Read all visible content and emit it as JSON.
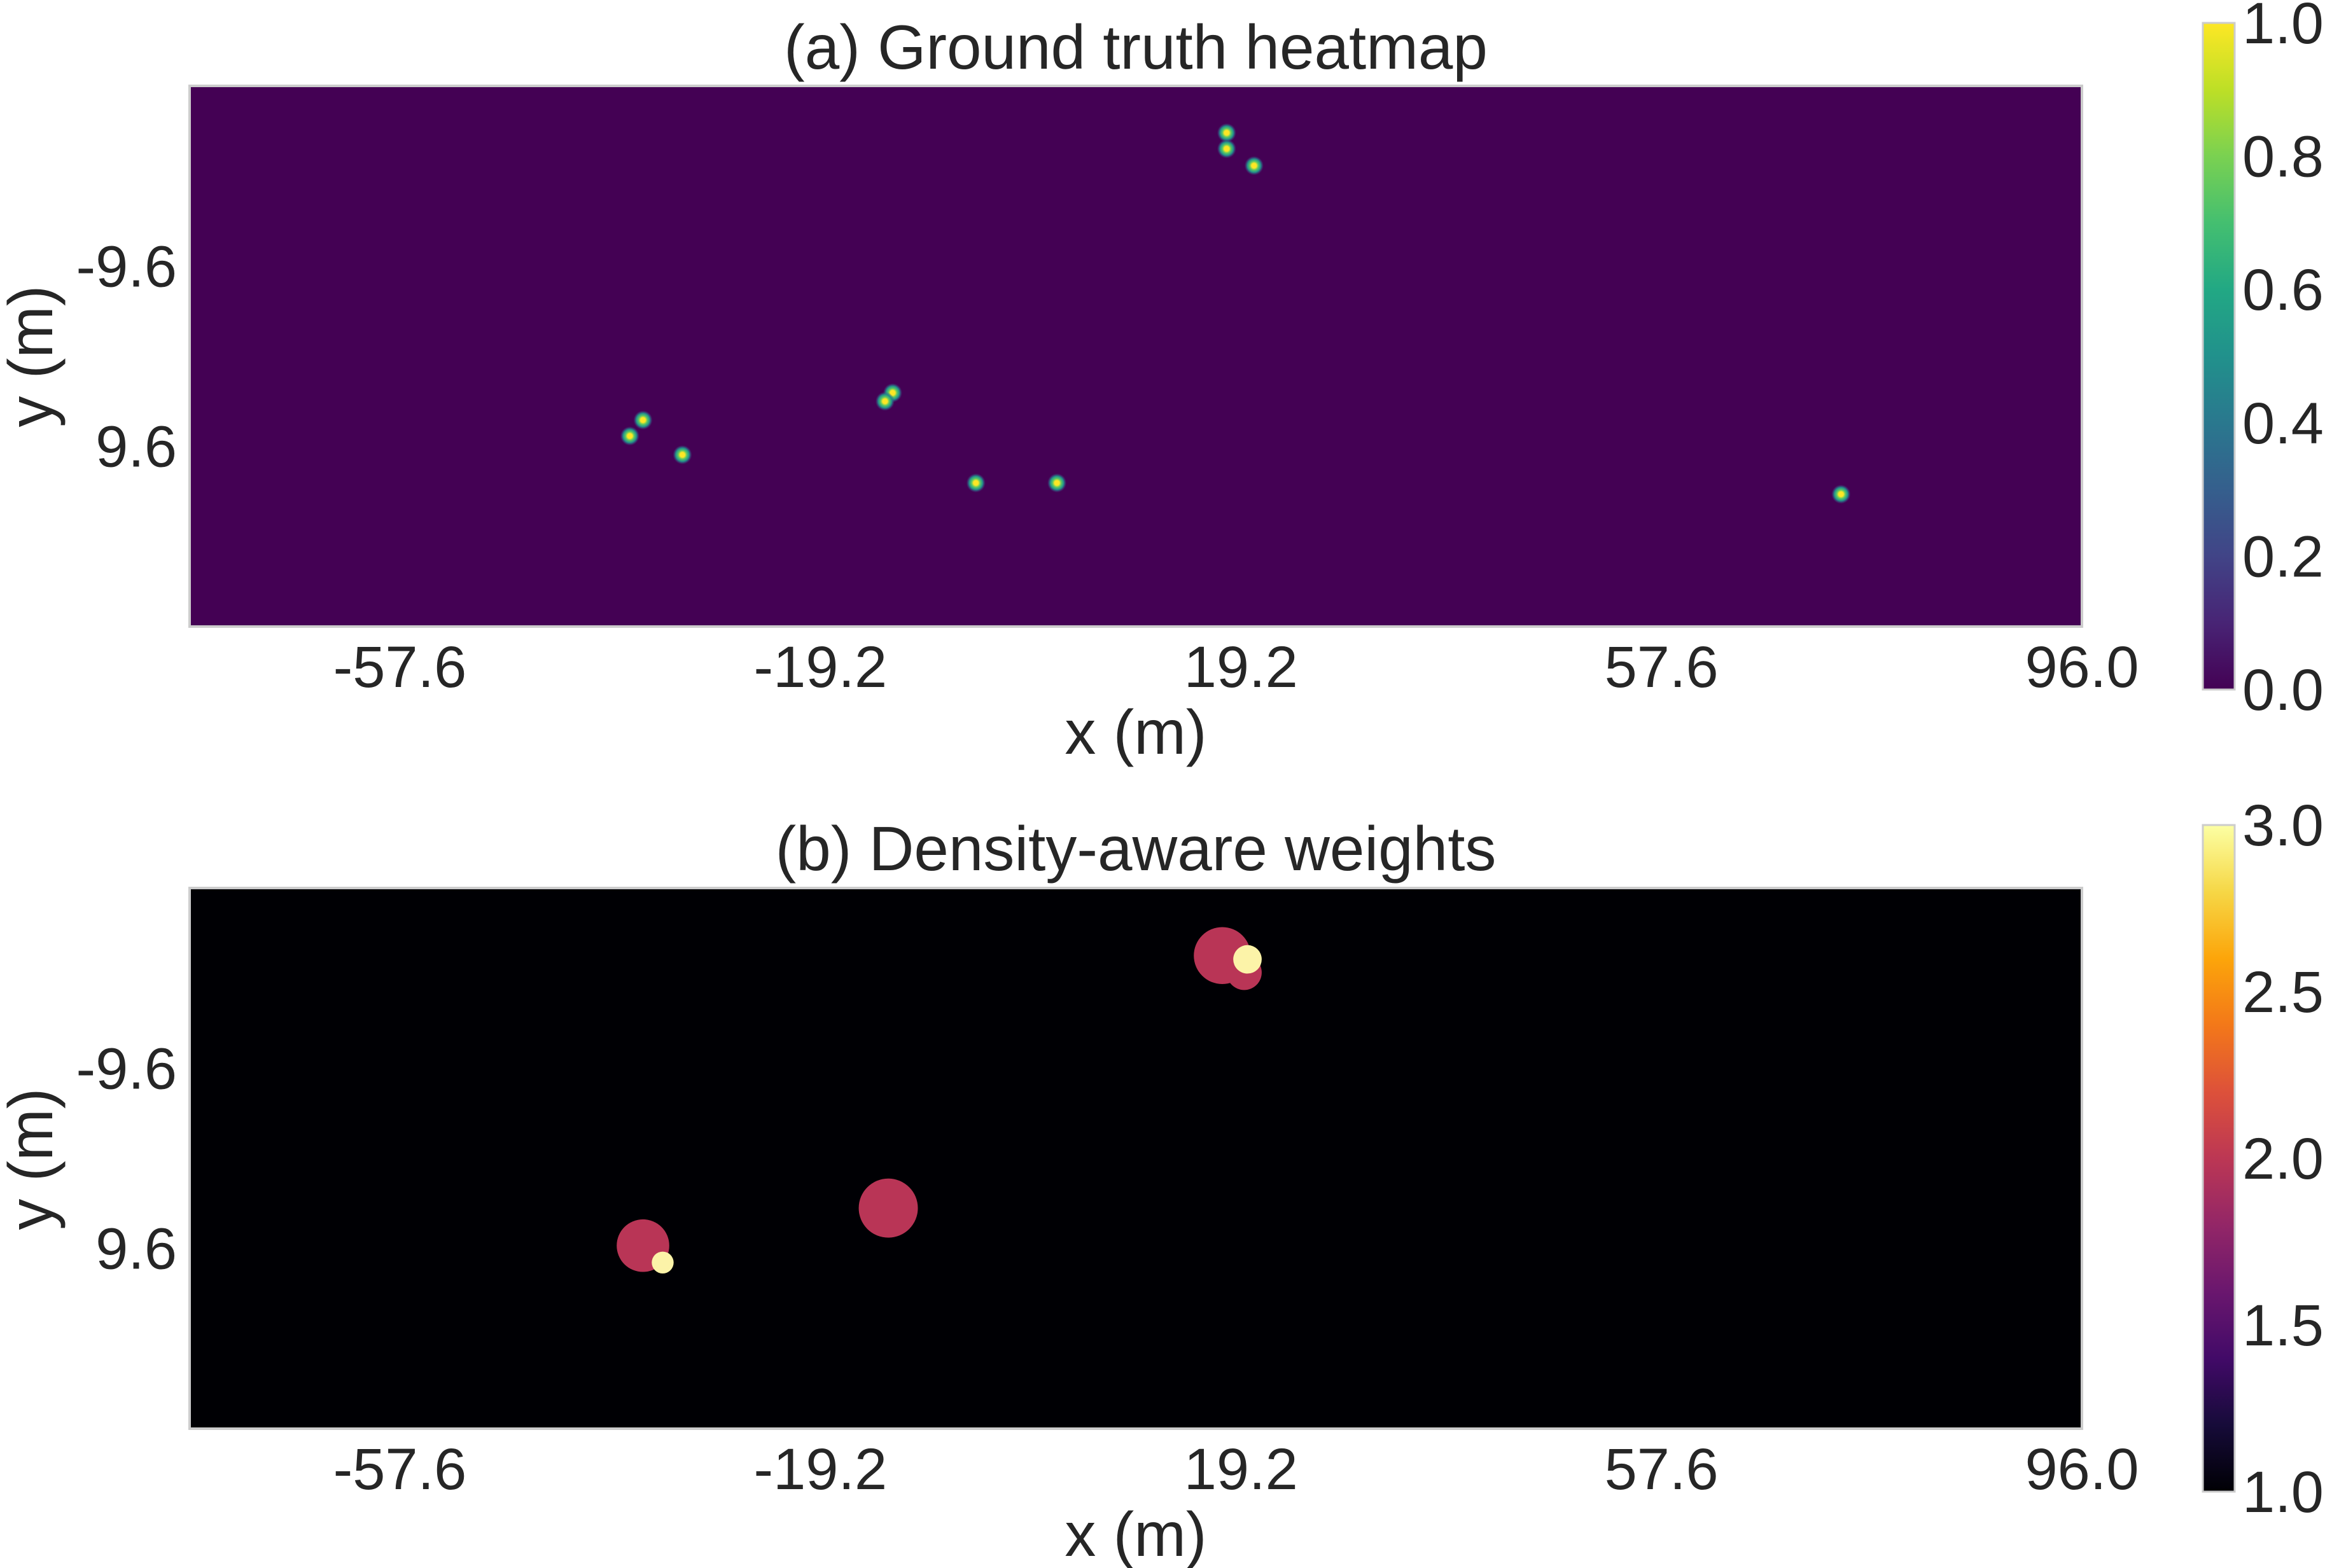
{
  "chart_data": [
    {
      "type": "heatmap",
      "title": "(a) Ground truth heatmap",
      "xlabel": "x (m)",
      "ylabel": "y (m)",
      "xlim": [
        -76.8,
        96.0
      ],
      "ylim": [
        28.8,
        -28.8
      ],
      "xticks": [
        "-57.6",
        "-19.2",
        "19.2",
        "57.6",
        "96.0"
      ],
      "yticks": [
        "-9.6",
        "9.6"
      ],
      "colormap": "viridis",
      "background_color": "#440154",
      "colorbar": {
        "range": [
          0.0,
          1.0
        ],
        "ticks": [
          "0.0",
          "0.2",
          "0.4",
          "0.6",
          "0.8",
          "1.0"
        ]
      },
      "grid": false,
      "points": [
        {
          "x": 17.9,
          "y": -23.8,
          "value": 1.0
        },
        {
          "x": 17.9,
          "y": -22.1,
          "value": 1.0
        },
        {
          "x": 20.4,
          "y": -20.3,
          "value": 1.0
        },
        {
          "x": -35.4,
          "y": 6.8,
          "value": 1.0
        },
        {
          "x": -36.6,
          "y": 8.5,
          "value": 1.0
        },
        {
          "x": -31.8,
          "y": 10.5,
          "value": 1.0
        },
        {
          "x": -12.6,
          "y": 3.9,
          "value": 1.0
        },
        {
          "x": -13.3,
          "y": 4.8,
          "value": 1.0
        },
        {
          "x": -5.0,
          "y": 13.5,
          "value": 1.0
        },
        {
          "x": 2.4,
          "y": 13.5,
          "value": 1.0
        },
        {
          "x": 74.0,
          "y": 14.7,
          "value": 1.0
        }
      ]
    },
    {
      "type": "heatmap",
      "title": "(b) Density-aware weights",
      "xlabel": "x (m)",
      "ylabel": "y (m)",
      "xlim": [
        -76.8,
        96.0
      ],
      "ylim": [
        28.8,
        -28.8
      ],
      "xticks": [
        "-57.6",
        "-19.2",
        "19.2",
        "57.6",
        "96.0"
      ],
      "yticks": [
        "-9.6",
        "9.6"
      ],
      "colormap": "inferno",
      "background_color": "#000004",
      "colorbar": {
        "range": [
          1.0,
          3.0
        ],
        "ticks": [
          "1.0",
          "1.5",
          "2.0",
          "2.5",
          "3.0"
        ]
      },
      "grid": false,
      "regions": [
        {
          "x": 17.5,
          "y": -21.6,
          "radius": 2.6,
          "value": 2.0
        },
        {
          "x": 19.5,
          "y": -19.8,
          "radius": 1.6,
          "value": 2.0
        },
        {
          "x": 19.8,
          "y": -21.2,
          "radius": 1.3,
          "value": 3.0
        },
        {
          "x": -13.0,
          "y": 5.3,
          "radius": 2.7,
          "value": 2.0
        },
        {
          "x": -35.4,
          "y": 9.3,
          "radius": 2.4,
          "value": 2.0
        },
        {
          "x": -33.6,
          "y": 11.1,
          "radius": 1.0,
          "value": 3.0
        }
      ]
    }
  ]
}
